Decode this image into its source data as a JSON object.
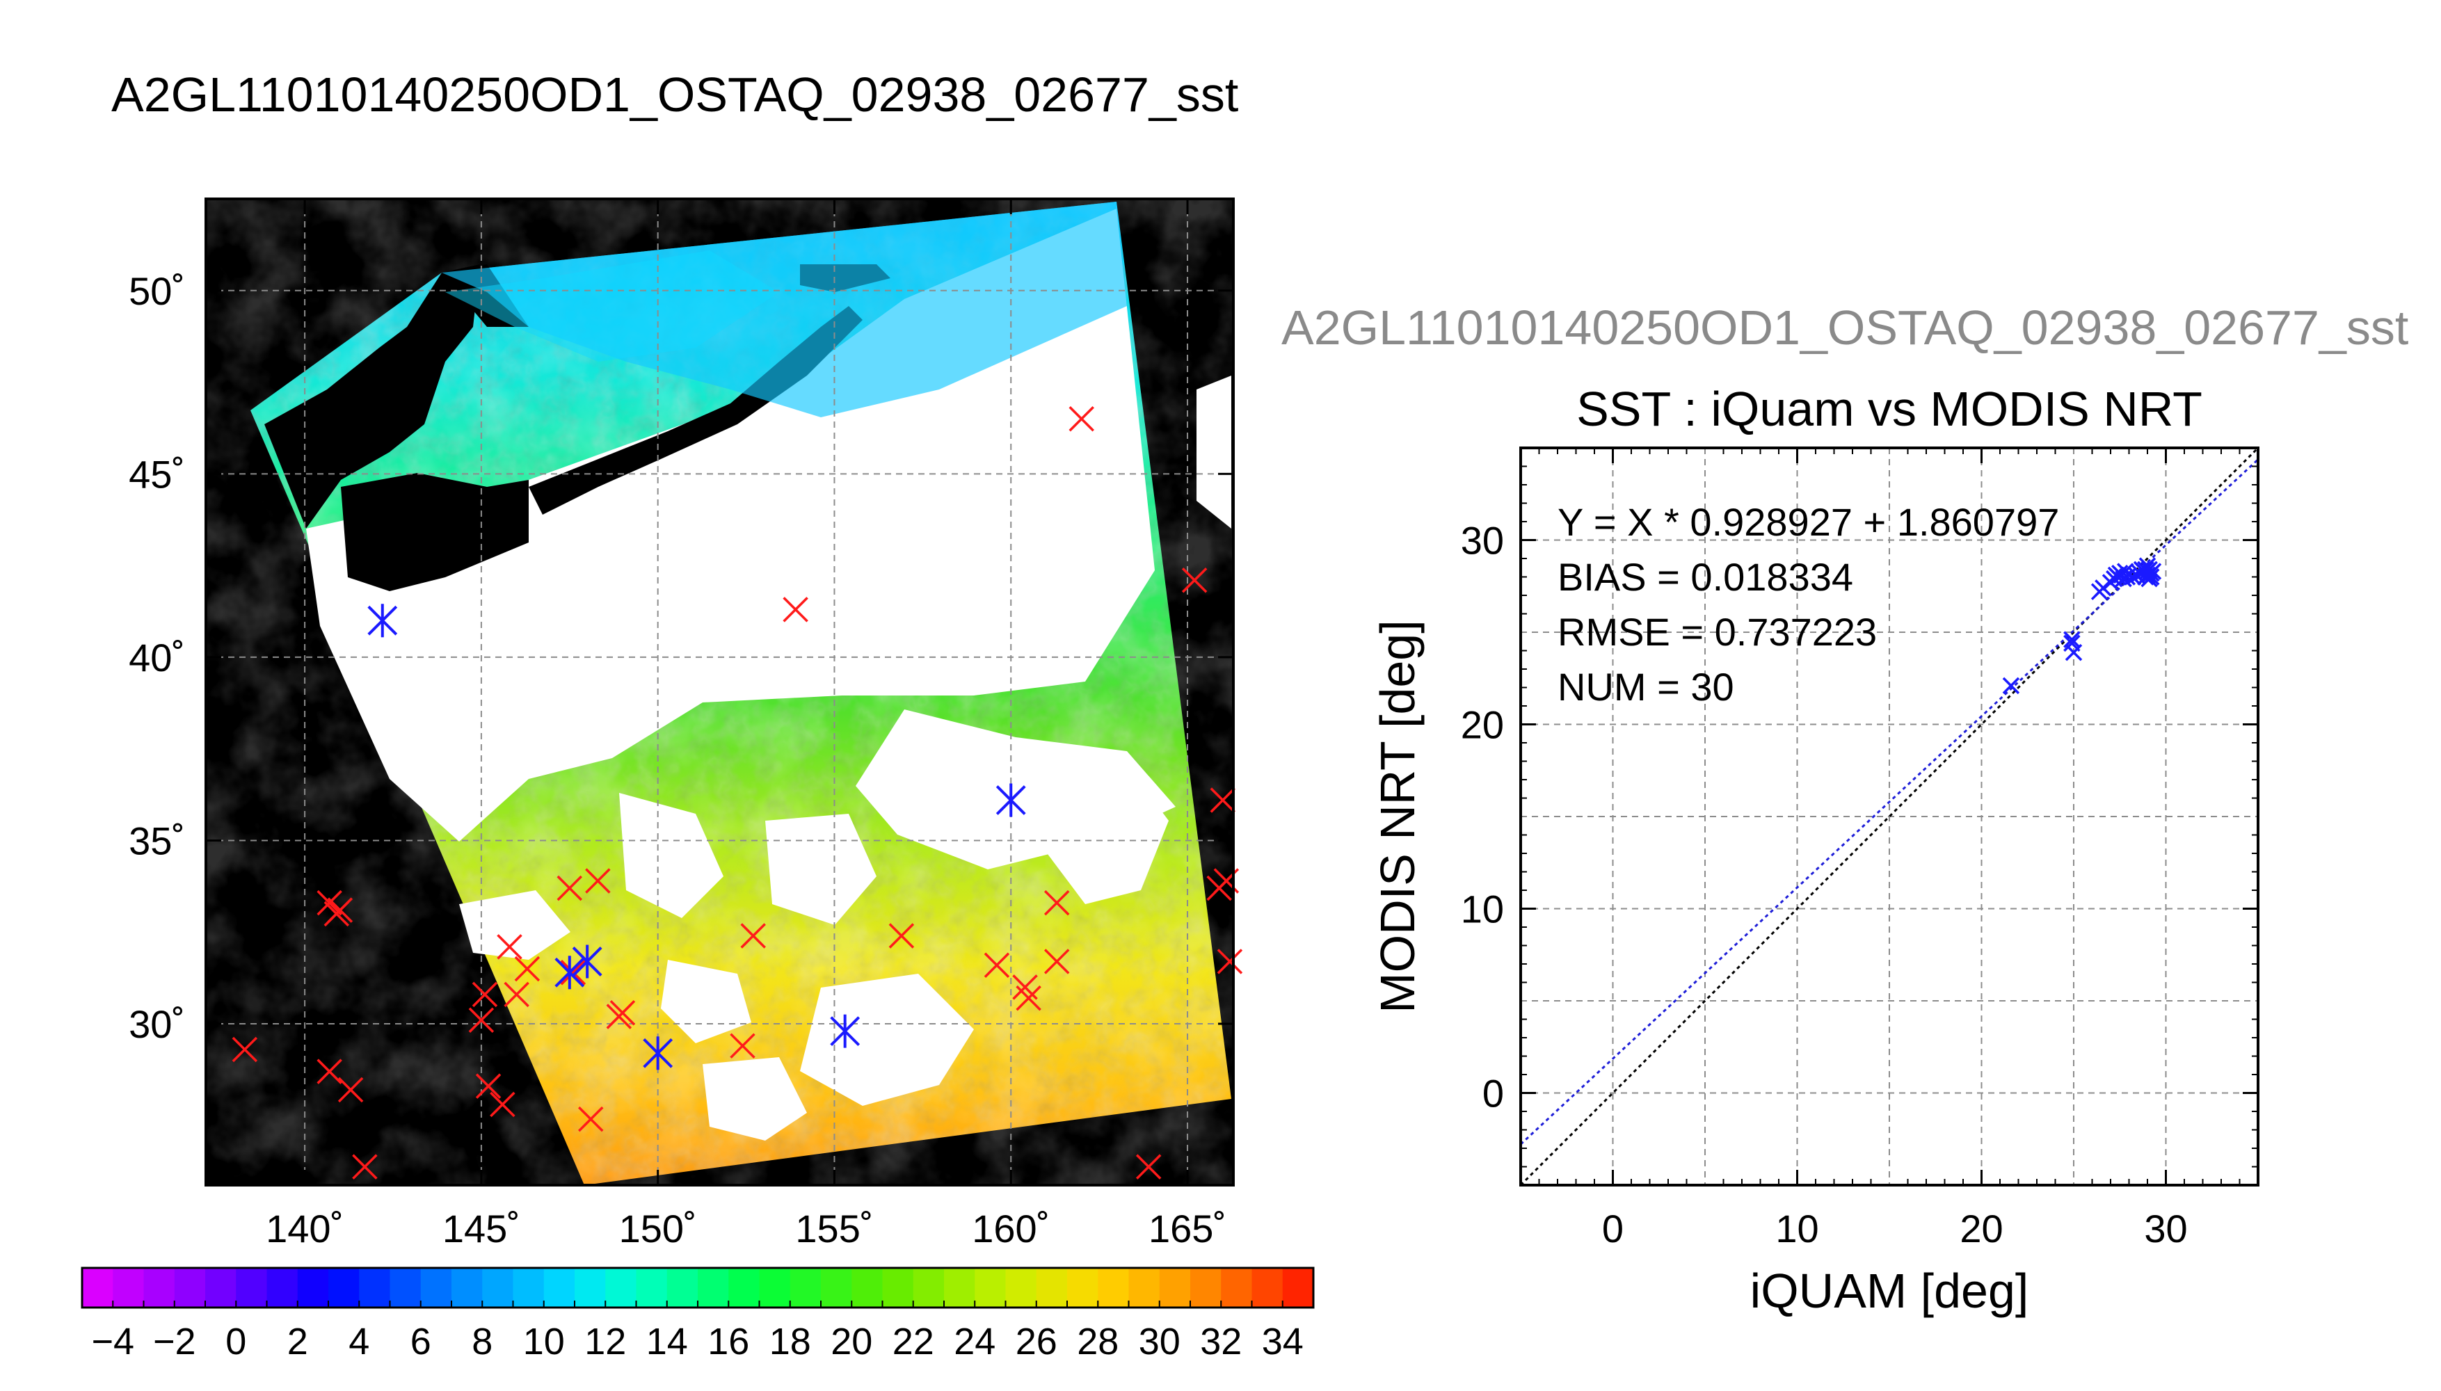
{
  "main_title": "A2GL11010140250OD1_OSTAQ_02938_02677_sst",
  "colors": {
    "background": "#ffffff",
    "land": "#000000",
    "cloud": "#ffffff",
    "match_marker": "#ff1a1a",
    "used_marker": "#1a1aff",
    "fit_line": "#1e1ed8",
    "one_to_one_line": "#000000"
  },
  "chart_data": [
    {
      "type": "heatmap",
      "name": "sst-map",
      "projection": "lat-lon",
      "x_ticks": [
        "140˚",
        "145˚",
        "150˚",
        "155˚",
        "160˚",
        "165˚"
      ],
      "x_tick_values": [
        140,
        145,
        150,
        155,
        160,
        165
      ],
      "y_ticks": [
        "30˚",
        "35˚",
        "40˚",
        "45˚",
        "50˚"
      ],
      "y_tick_values": [
        30,
        35,
        40,
        45,
        50
      ],
      "xlim": [
        137.2,
        166.3
      ],
      "ylim": [
        25.6,
        52.5
      ],
      "grid": true,
      "matchups_red": [
        [
          138.3,
          29.3
        ],
        [
          140.7,
          33.3
        ],
        [
          140.9,
          33.0
        ],
        [
          141.0,
          33.1
        ],
        [
          140.7,
          28.7
        ],
        [
          141.3,
          28.2
        ],
        [
          141.7,
          26.1
        ],
        [
          142.2,
          41.0
        ],
        [
          145.0,
          30.1
        ],
        [
          145.1,
          30.8
        ],
        [
          145.2,
          28.3
        ],
        [
          145.6,
          27.8
        ],
        [
          145.8,
          32.1
        ],
        [
          146.0,
          30.8
        ],
        [
          146.3,
          31.5
        ],
        [
          147.5,
          33.7
        ],
        [
          147.6,
          31.4
        ],
        [
          148.3,
          33.9
        ],
        [
          148.0,
          31.7
        ],
        [
          148.1,
          27.4
        ],
        [
          148.9,
          30.2
        ],
        [
          149.0,
          30.3
        ],
        [
          150.0,
          29.2
        ],
        [
          152.4,
          29.4
        ],
        [
          152.7,
          32.4
        ],
        [
          153.9,
          41.3
        ],
        [
          155.3,
          29.8
        ],
        [
          156.9,
          32.4
        ],
        [
          159.6,
          31.6
        ],
        [
          160.0,
          36.1
        ],
        [
          160.4,
          31.0
        ],
        [
          160.5,
          30.7
        ],
        [
          161.3,
          33.3
        ],
        [
          161.3,
          31.7
        ],
        [
          162.0,
          46.5
        ],
        [
          163.9,
          26.1
        ],
        [
          165.2,
          42.1
        ],
        [
          166.0,
          36.1
        ],
        [
          165.9,
          33.7
        ],
        [
          166.1,
          33.9
        ],
        [
          166.2,
          31.7
        ]
      ],
      "matchups_blue": [
        [
          142.2,
          41.0
        ],
        [
          147.5,
          31.4
        ],
        [
          148.0,
          31.7
        ],
        [
          150.0,
          29.2
        ],
        [
          155.3,
          29.8
        ],
        [
          160.0,
          36.1
        ]
      ],
      "colorbar": {
        "min": -5,
        "max": 35,
        "step": 2,
        "labels": [
          "−4",
          "−2",
          "0",
          "2",
          "4",
          "6",
          "8",
          "10",
          "12",
          "14",
          "16",
          "18",
          "20",
          "22",
          "24",
          "26",
          "28",
          "30",
          "32",
          "34"
        ],
        "label_values": [
          -4,
          -2,
          0,
          2,
          4,
          6,
          8,
          10,
          12,
          14,
          16,
          18,
          20,
          22,
          24,
          26,
          28,
          30,
          32,
          34
        ]
      }
    },
    {
      "type": "scatter",
      "name": "sst-scatter",
      "header": "A2GL11010140250OD1_OSTAQ_02938_02677_sst",
      "title": "SST : iQuam vs MODIS NRT",
      "xlabel": "iQUAM [deg]",
      "ylabel": "MODIS NRT [deg]",
      "xlim": [
        -5,
        35
      ],
      "ylim": [
        -5,
        35
      ],
      "x_ticks": [
        "0",
        "10",
        "20",
        "30"
      ],
      "x_tick_values": [
        0,
        10,
        20,
        30
      ],
      "y_ticks": [
        "0",
        "10",
        "20",
        "30"
      ],
      "y_tick_values": [
        0,
        10,
        20,
        30
      ],
      "grid": true,
      "stats": [
        "Y = X * 0.928927 + 1.860797",
        "BIAS = 0.018334",
        "RMSE = 0.737223",
        "NUM = 30"
      ],
      "fit": {
        "slope": 0.928927,
        "intercept": 1.860797
      },
      "points": [
        [
          21.6,
          22.1
        ],
        [
          24.9,
          24.6
        ],
        [
          24.9,
          24.4
        ],
        [
          25.0,
          23.9
        ],
        [
          26.4,
          27.2
        ],
        [
          26.6,
          27.4
        ],
        [
          27.0,
          27.7
        ],
        [
          27.2,
          27.9
        ],
        [
          27.3,
          28.1
        ],
        [
          27.4,
          28.0
        ],
        [
          27.5,
          28.2
        ],
        [
          27.6,
          28.1
        ],
        [
          27.7,
          27.9
        ],
        [
          27.9,
          28.0
        ],
        [
          28.2,
          28.0
        ],
        [
          28.4,
          28.1
        ],
        [
          28.6,
          28.2
        ],
        [
          28.8,
          28.3
        ],
        [
          28.9,
          28.4
        ],
        [
          28.9,
          28.0
        ],
        [
          29.0,
          28.1
        ],
        [
          29.0,
          28.3
        ],
        [
          29.1,
          27.9
        ],
        [
          29.1,
          28.4
        ],
        [
          29.2,
          28.2
        ],
        [
          29.2,
          28.0
        ],
        [
          29.3,
          28.3
        ],
        [
          29.0,
          28.6
        ],
        [
          28.7,
          28.4
        ],
        [
          27.8,
          28.3
        ]
      ]
    }
  ]
}
